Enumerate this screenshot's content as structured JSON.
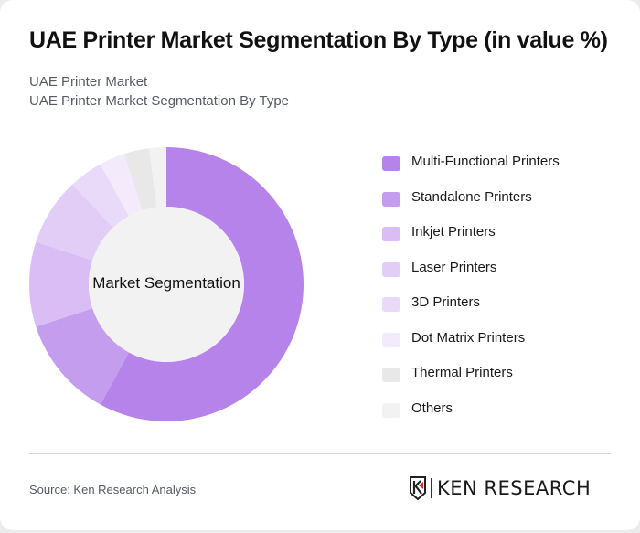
{
  "header": {
    "title": "UAE Printer Market Segmentation By Type (in value %)",
    "subtitle_1": "UAE Printer Market",
    "subtitle_2": "UAE Printer Market Segmentation By Type"
  },
  "chart": {
    "center_label": "Market Segmentation"
  },
  "legend": [
    {
      "label": "Multi-Functional Printers",
      "color": "#b583ea"
    },
    {
      "label": "Standalone Printers",
      "color": "#c59dee"
    },
    {
      "label": "Inkjet Printers",
      "color": "#d9bdf4"
    },
    {
      "label": "Laser Printers",
      "color": "#e2cdf6"
    },
    {
      "label": "3D Printers",
      "color": "#eadaf9"
    },
    {
      "label": "Dot Matrix Printers",
      "color": "#f3ebfc"
    },
    {
      "label": "Thermal Printers",
      "color": "#e8e8e8"
    },
    {
      "label": "Others",
      "color": "#f2f2f2"
    }
  ],
  "footer": {
    "source": "Source: Ken Research Analysis",
    "logo_text": "KEN RESEARCH"
  },
  "chart_data": {
    "type": "pie",
    "title": "UAE Printer Market Segmentation By Type (in value %)",
    "subtitle": "UAE Printer Market Segmentation By Type",
    "center_label": "Market Segmentation",
    "categories": [
      "Multi-Functional Printers",
      "Standalone Printers",
      "Inkjet Printers",
      "Laser Printers",
      "3D Printers",
      "Dot Matrix Printers",
      "Thermal Printers",
      "Others"
    ],
    "values": [
      58,
      12,
      10,
      8,
      4,
      3,
      3,
      2
    ],
    "colors": [
      "#b583ea",
      "#c59dee",
      "#d9bdf4",
      "#e2cdf6",
      "#eadaf9",
      "#f3ebfc",
      "#e8e8e8",
      "#f2f2f2"
    ],
    "donut": true,
    "start_angle": "top, clockwise",
    "legend_position": "right"
  }
}
